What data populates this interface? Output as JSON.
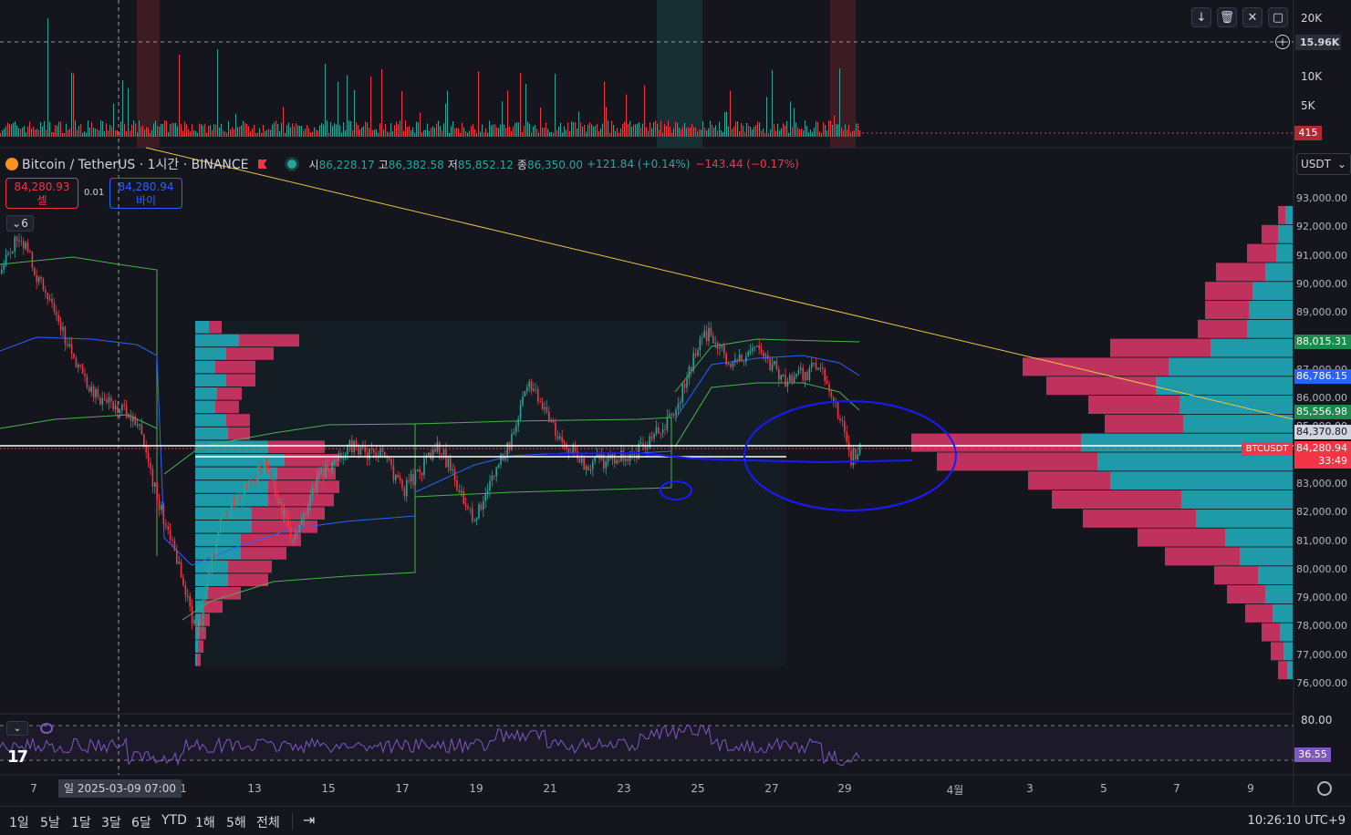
{
  "volume_pane": {
    "axis_labels": [
      "20K",
      "15.96K",
      "10K",
      "5K"
    ],
    "current_volume": "415"
  },
  "toolbar_icons": [
    "arrow-down-icon",
    "trash-icon",
    "close-icon",
    "rectangle-icon"
  ],
  "legend": {
    "symbol": "Bitcoin / TetherUS · 1시간 · BINANCE",
    "open_label": "시",
    "open": "86,228.17",
    "high_label": "고",
    "high": "86,382.58",
    "low_label": "저",
    "low": "85,852.12",
    "close_label": "종",
    "close": "86,350.00",
    "change": "+121.84 (+0.14%)",
    "change2": "−143.44 (−0.17%)"
  },
  "order": {
    "sell_price": "84,280.93",
    "sell_label": "셀",
    "spread": "0.01",
    "buy_price": "84,280.94",
    "buy_label": "바이"
  },
  "indicator_count": "6",
  "currency": "USDT",
  "price_axis": [
    "93,000.00",
    "92,000.00",
    "91,000.00",
    "90,000.00",
    "89,000.00",
    "88,000.00",
    "87,000.00",
    "86,000.00",
    "85,000.00",
    "84,000.00",
    "83,000.00",
    "82,000.00",
    "81,000.00",
    "80,000.00",
    "79,000.00",
    "78,000.00",
    "77,000.00",
    "76,000.00"
  ],
  "price_tags": {
    "green1": "88,015.31",
    "blue": "86,786.15",
    "green2": "85,556.98",
    "white": "84,370.80",
    "symbol_tag": "BTCUSDT",
    "last": "84,280.94",
    "countdown": "33:49"
  },
  "rsi": {
    "axis_top": "80.00",
    "value": "36.55"
  },
  "time_axis": {
    "labels": [
      "7",
      "1",
      "13",
      "15",
      "17",
      "19",
      "21",
      "23",
      "25",
      "27",
      "29",
      "4월",
      "3",
      "5",
      "7",
      "9"
    ],
    "crosshair_date": "일 2025-03-09   07:00"
  },
  "ranges": [
    "1일",
    "5날",
    "1달",
    "3달",
    "6달",
    "YTD",
    "1해",
    "5해",
    "전체"
  ],
  "clock": "10:26:10 UTC+9",
  "colors": {
    "up": "#26a69a",
    "down": "#f23645",
    "vp_up": "#1f9aa8",
    "vp_down": "#c0325e"
  }
}
